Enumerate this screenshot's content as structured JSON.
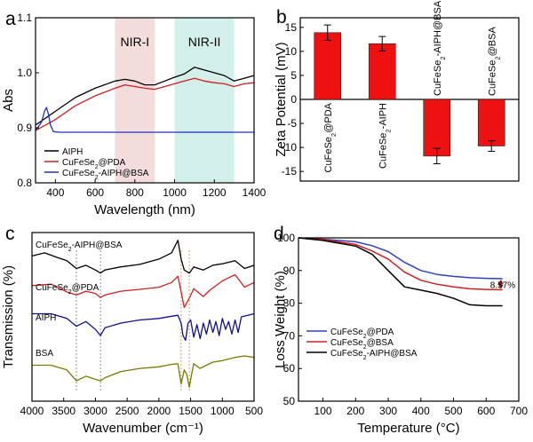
{
  "chart_data": [
    {
      "panel": "a",
      "type": "line",
      "xlabel": "Wavelength (nm)",
      "ylabel": "Abs",
      "xlim": [
        300,
        1400
      ],
      "ylim": [
        0.8,
        1.1
      ],
      "xticks": [
        400,
        600,
        800,
        1000,
        1200,
        1400
      ],
      "yticks": [
        0.8,
        0.9,
        1.0,
        1.1
      ],
      "regions": [
        {
          "label": "NIR-I",
          "x0": 700,
          "x1": 900,
          "color": "#f2dcdc"
        },
        {
          "label": "NIR-II",
          "x0": 1000,
          "x1": 1300,
          "color": "#d2efe9"
        }
      ],
      "legend_position": "bottom-left",
      "series": [
        {
          "name": "AIPH",
          "color": "#000000",
          "x": [
            300,
            400,
            500,
            600,
            700,
            750,
            800,
            850,
            900,
            950,
            1000,
            1050,
            1100,
            1150,
            1200,
            1250,
            1300,
            1350,
            1400
          ],
          "y": [
            0.905,
            0.93,
            0.955,
            0.972,
            0.985,
            0.988,
            0.985,
            0.978,
            0.978,
            0.985,
            0.992,
            0.998,
            1.01,
            1.005,
            1.0,
            0.995,
            0.985,
            0.99,
            0.995
          ]
        },
        {
          "name": "CuFeSe2@PDA",
          "color": "#cc2020",
          "x": [
            300,
            400,
            500,
            600,
            700,
            750,
            800,
            850,
            900,
            950,
            1000,
            1050,
            1100,
            1150,
            1200,
            1250,
            1300,
            1350,
            1400
          ],
          "y": [
            0.895,
            0.915,
            0.94,
            0.958,
            0.972,
            0.978,
            0.975,
            0.972,
            0.97,
            0.975,
            0.98,
            0.985,
            0.99,
            0.985,
            0.982,
            0.98,
            0.975,
            0.98,
            0.982
          ]
        },
        {
          "name": "CuFeSe2-AIPH@BSA",
          "color": "#2030c0",
          "x": [
            300,
            330,
            345,
            355,
            365,
            375,
            390,
            420,
            500,
            700,
            1000,
            1200,
            1400
          ],
          "y": [
            0.895,
            0.91,
            0.93,
            0.937,
            0.925,
            0.905,
            0.893,
            0.892,
            0.892,
            0.892,
            0.892,
            0.892,
            0.892
          ]
        }
      ]
    },
    {
      "panel": "b",
      "type": "bar",
      "ylabel": "Zeta Potential (mV)",
      "ylim": [
        -17,
        17
      ],
      "yticks": [
        -15,
        -10,
        -5,
        0,
        5,
        10,
        15
      ],
      "categories": [
        "CuFeSe2@PDA",
        "CuFeSe2-AIPH",
        "CuFeSe2-AIPH@BSA",
        "CuFeSe2@BSA"
      ],
      "values": [
        13.9,
        11.6,
        -11.8,
        -9.7
      ],
      "errors": [
        1.6,
        1.5,
        1.6,
        1.1
      ],
      "color": "#ee1111"
    },
    {
      "panel": "c",
      "type": "line",
      "xlabel": "Wavenumber (cm⁻¹)",
      "ylabel": "Transmission (%)",
      "xlim": [
        4000,
        500
      ],
      "xticks": [
        4000,
        3500,
        3000,
        2500,
        2000,
        1500,
        1000,
        500
      ],
      "reference_lines": [
        3300,
        2920,
        1650,
        1520
      ],
      "series": [
        {
          "name": "CuFeSe2-AIPH@BSA",
          "color": "#000000",
          "x": [
            4000,
            3800,
            3600,
            3450,
            3300,
            3150,
            3000,
            2920,
            2850,
            2600,
            2300,
            2000,
            1800,
            1700,
            1650,
            1600,
            1520,
            1450,
            1300,
            1150,
            1000,
            800,
            650,
            500
          ],
          "y": [
            3.05,
            3.15,
            3.0,
            2.9,
            2.65,
            2.75,
            2.6,
            2.5,
            2.6,
            2.7,
            2.78,
            2.95,
            3.15,
            3.55,
            2.95,
            2.6,
            2.5,
            2.7,
            2.6,
            2.75,
            2.8,
            2.9,
            2.65,
            2.75
          ]
        },
        {
          "name": "CuFeSe2@PDA",
          "color": "#cc2020",
          "x": [
            4000,
            3700,
            3450,
            3300,
            3150,
            3000,
            2920,
            2850,
            2600,
            2300,
            2000,
            1800,
            1700,
            1650,
            1600,
            1520,
            1450,
            1300,
            1200,
            1000,
            800,
            650,
            500
          ],
          "y": [
            2.1,
            2.15,
            1.9,
            1.8,
            1.92,
            1.85,
            1.72,
            1.8,
            1.92,
            1.98,
            2.05,
            2.2,
            2.4,
            1.9,
            1.4,
            1.7,
            2.0,
            1.75,
            1.95,
            2.25,
            2.45,
            2.05,
            2.2
          ]
        },
        {
          "name": "AIPH",
          "color": "#10108a",
          "x": [
            4000,
            3700,
            3450,
            3300,
            3150,
            3000,
            2920,
            2850,
            2600,
            2300,
            2000,
            1800,
            1700,
            1650,
            1620,
            1580,
            1540,
            1500,
            1450,
            1400,
            1350,
            1300,
            1250,
            1200,
            1150,
            1100,
            1050,
            1000,
            950,
            900,
            850,
            800,
            750,
            700,
            600,
            500
          ],
          "y": [
            1.2,
            1.2,
            1.05,
            0.8,
            0.95,
            0.7,
            0.5,
            0.75,
            0.9,
            1.0,
            1.05,
            1.12,
            1.15,
            0.9,
            0.5,
            0.35,
            0.9,
            1.0,
            0.45,
            0.85,
            0.4,
            0.9,
            0.55,
            1.0,
            0.6,
            0.95,
            0.5,
            1.05,
            0.7,
            0.95,
            0.55,
            1.0,
            0.6,
            1.1,
            1.15,
            1.2
          ]
        },
        {
          "name": "BSA",
          "color": "#7a7a00",
          "x": [
            4000,
            3700,
            3450,
            3300,
            3150,
            3000,
            2920,
            2850,
            2600,
            2300,
            2000,
            1800,
            1700,
            1650,
            1600,
            1560,
            1520,
            1480,
            1450,
            1350,
            1250,
            1150,
            1000,
            800,
            650,
            500
          ],
          "y": [
            -0.45,
            -0.45,
            -0.6,
            -0.95,
            -0.8,
            -0.9,
            -0.95,
            -0.85,
            -0.65,
            -0.55,
            -0.5,
            -0.42,
            -0.4,
            -1.05,
            -0.6,
            -0.75,
            -1.15,
            -0.7,
            -0.4,
            -0.55,
            -0.45,
            -0.35,
            -0.3,
            -0.2,
            -0.15,
            -0.2
          ]
        }
      ]
    },
    {
      "panel": "d",
      "type": "line",
      "xlabel": "Temperature (°C)",
      "ylabel": "Loss Weight (%)",
      "xlim": [
        25,
        700
      ],
      "ylim": [
        50,
        100
      ],
      "xticks": [
        100,
        200,
        300,
        400,
        500,
        600,
        700
      ],
      "yticks": [
        50,
        60,
        70,
        80,
        90,
        100
      ],
      "annotation": "8.57%",
      "legend_position": "bottom-left",
      "series": [
        {
          "name": "CuFeSe2@PDA",
          "color": "#3040c0",
          "x": [
            25,
            100,
            200,
            250,
            300,
            350,
            400,
            450,
            500,
            550,
            600,
            650
          ],
          "y": [
            100,
            99.6,
            98.8,
            97.6,
            95.8,
            92.5,
            90.0,
            88.8,
            88.2,
            87.8,
            87.6,
            87.5
          ]
        },
        {
          "name": "CuFeSe2@BSA",
          "color": "#cc2020",
          "x": [
            25,
            100,
            200,
            250,
            300,
            350,
            400,
            450,
            500,
            550,
            600,
            650
          ],
          "y": [
            100,
            99.5,
            98.0,
            96.0,
            93.5,
            89.5,
            87.0,
            85.8,
            85.0,
            84.4,
            84.2,
            84.1
          ]
        },
        {
          "name": "CuFeSe2-AIPH@BSA",
          "color": "#000000",
          "x": [
            25,
            100,
            200,
            250,
            300,
            350,
            400,
            450,
            500,
            550,
            600,
            650
          ],
          "y": [
            100,
            99.2,
            97.5,
            95.0,
            90.0,
            85.0,
            84.0,
            83.0,
            81.5,
            79.5,
            79.2,
            79.2
          ]
        }
      ]
    }
  ]
}
